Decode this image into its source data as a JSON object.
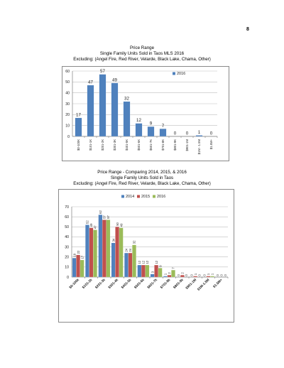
{
  "page": {
    "number": "8"
  },
  "chart_data": [
    {
      "type": "bar",
      "title": "Price Range",
      "subtitle": "Single Family Units Sold in Taos MLS 2016",
      "subtitle2": "Excluding: (Angel Fire, Red River, Velarde, Black Lake, Chama, Other)",
      "categories": [
        "$0-100K",
        "$101-1K",
        "$201-2K",
        "$301-3K",
        "$401-5K",
        "$501-6K",
        "$601-7K",
        "$701-8K",
        "$801-9K",
        "$901-1M",
        "$1M - 1.5M",
        "$1.5M+"
      ],
      "series": [
        {
          "name": "2016",
          "values": [
            17,
            47,
            57,
            49,
            32,
            12,
            9,
            7,
            0,
            0,
            1,
            0
          ]
        }
      ],
      "ylim": [
        0,
        60
      ],
      "yticks": [
        0,
        10,
        20,
        30,
        40,
        50,
        60
      ],
      "legend": "top-right",
      "grid": true,
      "colors": [
        "#4f81bd"
      ]
    },
    {
      "type": "bar",
      "title": "Price Range - Comparing 2014, 2015, & 2016",
      "subtitle": "Single Family Units Sold in Taos",
      "subtitle2": "Excluding: (Angel Fire, Red River, Velarde, Black Lake, Chama, Other)",
      "categories": [
        "$0-100k",
        "$101-2k",
        "$201-3k",
        "$301-4k",
        "$401-5k",
        "$501-6k",
        "$601-7k",
        "$701-8k",
        "$801-9k",
        "$901-1M",
        "$1M-1.5M",
        "$1.5M+"
      ],
      "series": [
        {
          "name": "2014",
          "values": [
            19,
            52,
            62,
            34,
            24,
            12,
            3,
            1,
            0,
            0,
            0,
            0
          ]
        },
        {
          "name": "2015",
          "values": [
            22,
            49,
            57,
            50,
            24,
            12,
            12,
            2,
            2,
            1,
            1,
            0
          ]
        },
        {
          "name": "2016",
          "values": [
            17,
            47,
            57,
            49,
            32,
            12,
            9,
            7,
            0,
            0,
            1,
            0
          ]
        }
      ],
      "ylim": [
        0,
        70
      ],
      "yticks": [
        0,
        10,
        20,
        30,
        40,
        50,
        60,
        70
      ],
      "legend": "top",
      "grid": true,
      "colors": [
        "#4f81bd",
        "#c0504d",
        "#9bbb59"
      ]
    }
  ]
}
